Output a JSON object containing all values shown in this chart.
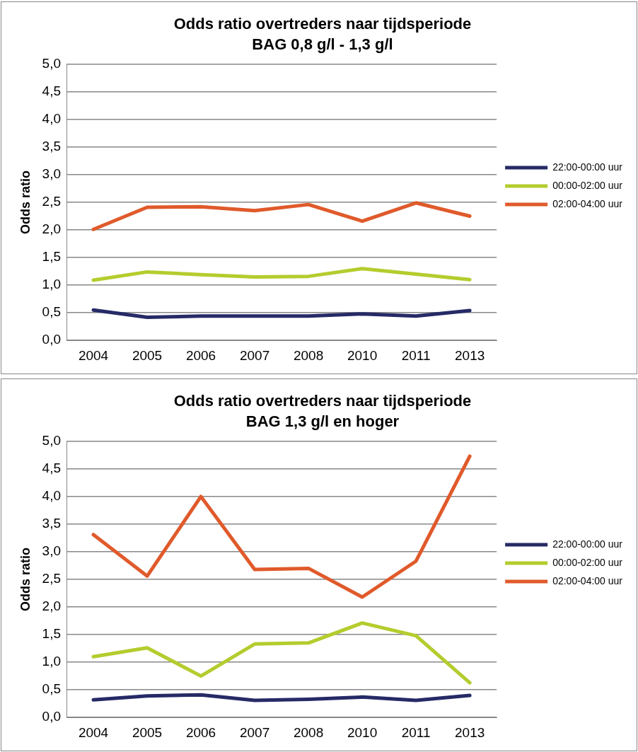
{
  "chart_data": [
    {
      "type": "line",
      "title": "Odds ratio overtreders naar tijdsperiode",
      "subtitle": "BAG 0,8 g/l - 1,3 g/l",
      "ylabel": "Odds ratio",
      "categories": [
        "2004",
        "2005",
        "2006",
        "2007",
        "2008",
        "2010",
        "2011",
        "2013"
      ],
      "series": [
        {
          "name": "22:00-00:00 uur",
          "color": "#262a66",
          "values": [
            0.55,
            0.42,
            0.44,
            0.44,
            0.44,
            0.48,
            0.44,
            0.54
          ]
        },
        {
          "name": "00:00-02:00 uur",
          "color": "#b5cc2e",
          "values": [
            1.09,
            1.24,
            1.19,
            1.15,
            1.16,
            1.3,
            1.2,
            1.1
          ]
        },
        {
          "name": "02:00-04:00 uur",
          "color": "#e05a2b",
          "values": [
            2.01,
            2.41,
            2.42,
            2.35,
            2.46,
            2.16,
            2.49,
            2.25
          ]
        }
      ],
      "ylim": [
        0,
        5
      ],
      "yticks": [
        {
          "value": 0,
          "label": "0,0"
        },
        {
          "value": 0.5,
          "label": "0,5"
        },
        {
          "value": 1,
          "label": "1,0"
        },
        {
          "value": 1.5,
          "label": "1,5"
        },
        {
          "value": 2,
          "label": "2,0"
        },
        {
          "value": 2.5,
          "label": "2,5"
        },
        {
          "value": 3,
          "label": "3,0"
        },
        {
          "value": 3.5,
          "label": "3,5"
        },
        {
          "value": 4,
          "label": "4,0"
        },
        {
          "value": 4.5,
          "label": "4,5"
        },
        {
          "value": 5,
          "label": "5,0"
        }
      ],
      "grid": "y",
      "legend": "right",
      "marker": "none",
      "line_style": "solid"
    },
    {
      "type": "line",
      "title": "Odds ratio overtreders naar tijdsperiode",
      "subtitle": "BAG 1,3 g/l en hoger",
      "ylabel": "Odds ratio",
      "categories": [
        "2004",
        "2005",
        "2006",
        "2007",
        "2008",
        "2010",
        "2011",
        "2013"
      ],
      "series": [
        {
          "name": "22:00-00:00 uur",
          "color": "#262a66",
          "values": [
            0.32,
            0.39,
            0.41,
            0.31,
            0.33,
            0.37,
            0.31,
            0.4
          ]
        },
        {
          "name": "00:00-02:00 uur",
          "color": "#b5cc2e",
          "values": [
            1.1,
            1.26,
            0.75,
            1.33,
            1.35,
            1.71,
            1.48,
            0.63
          ]
        },
        {
          "name": "02:00-04:00 uur",
          "color": "#e05a2b",
          "values": [
            3.31,
            2.56,
            4.0,
            2.68,
            2.7,
            2.18,
            2.83,
            4.73
          ]
        }
      ],
      "ylim": [
        0,
        5
      ],
      "yticks": [
        {
          "value": 0,
          "label": "0,0"
        },
        {
          "value": 0.5,
          "label": "0,5"
        },
        {
          "value": 1,
          "label": "1,0"
        },
        {
          "value": 1.5,
          "label": "1,5"
        },
        {
          "value": 2,
          "label": "2,0"
        },
        {
          "value": 2.5,
          "label": "2,5"
        },
        {
          "value": 3,
          "label": "3,0"
        },
        {
          "value": 3.5,
          "label": "3,5"
        },
        {
          "value": 4,
          "label": "4,0"
        },
        {
          "value": 4.5,
          "label": "4,5"
        },
        {
          "value": 5,
          "label": "5,0"
        }
      ],
      "grid": "y",
      "legend": "right",
      "marker": "none",
      "line_style": "solid"
    }
  ]
}
